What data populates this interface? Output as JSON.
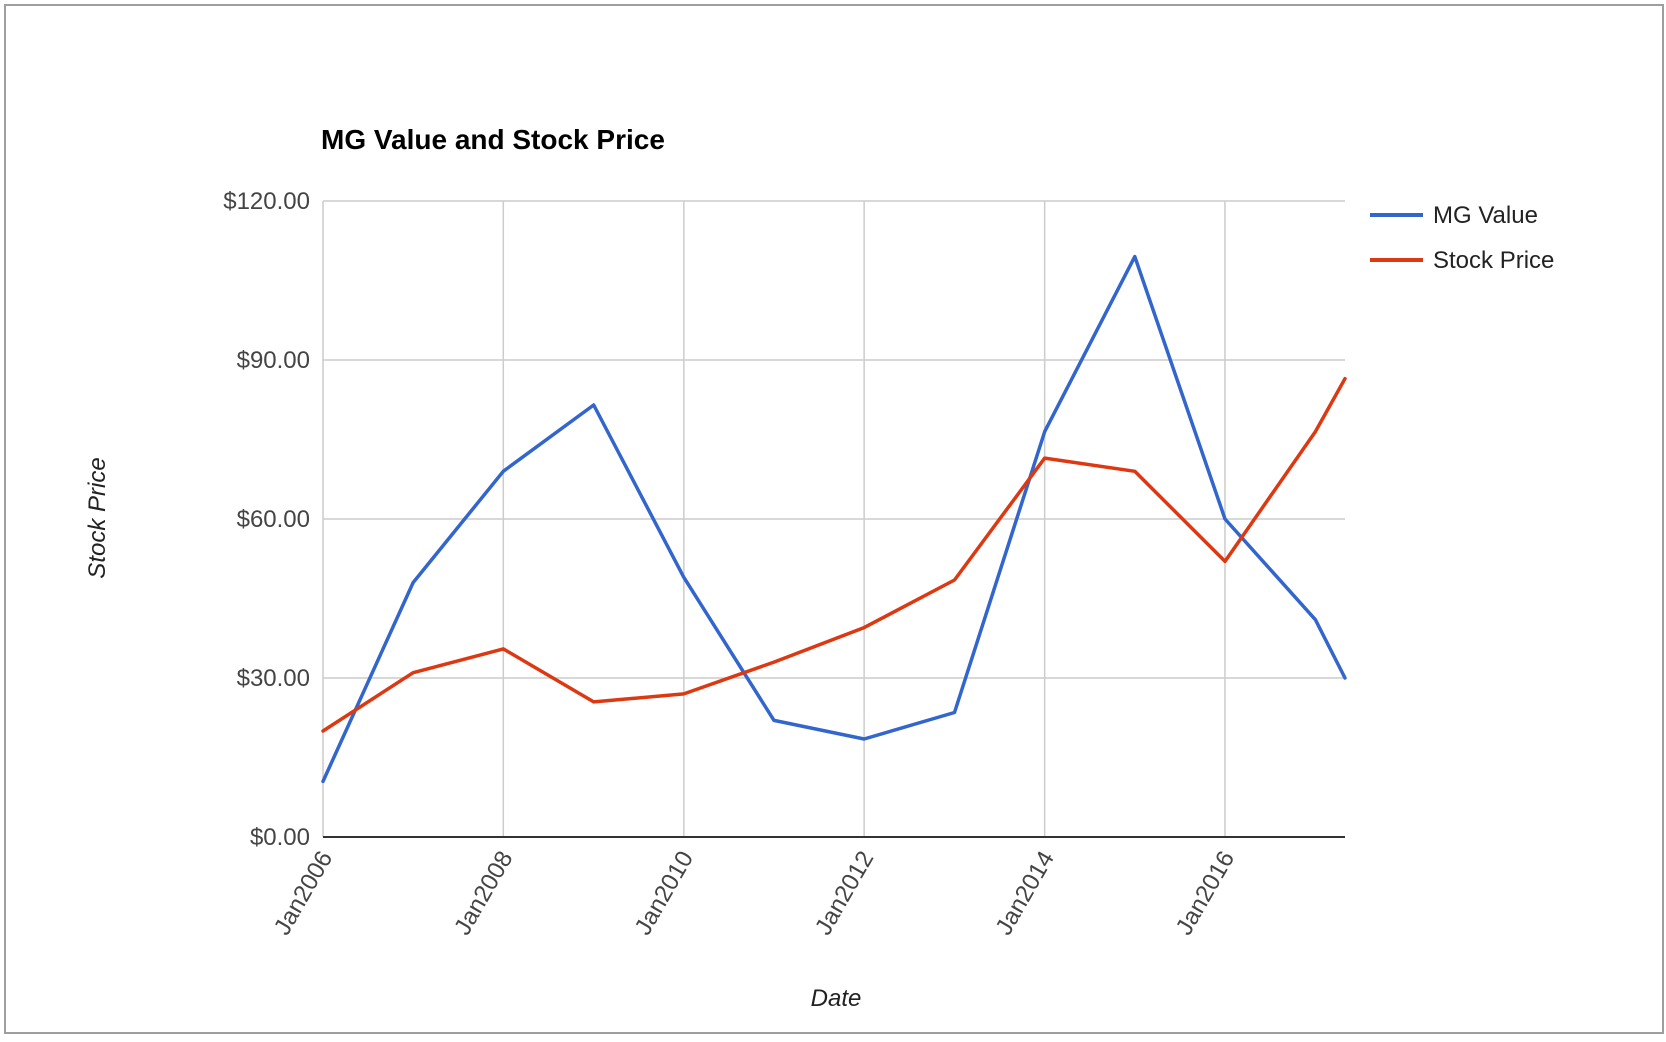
{
  "chart_data": {
    "type": "line",
    "title": "MG Value and Stock Price",
    "xlabel": "Date",
    "ylabel": "Stock Price",
    "x": [
      "2006-01-01",
      "2007-01-01",
      "2008-01-01",
      "2009-01-01",
      "2010-01-01",
      "2011-01-01",
      "2012-01-01",
      "2013-01-01",
      "2014-01-01",
      "2015-01-01",
      "2016-01-01",
      "2017-01-01",
      "2017-05-01"
    ],
    "x_ticks": [
      "Jan2006",
      "Jan2008",
      "Jan2010",
      "Jan2012",
      "Jan2014",
      "Jan2016"
    ],
    "x_tick_dates": [
      "2006-01-01",
      "2008-01-01",
      "2010-01-01",
      "2012-01-01",
      "2014-01-01",
      "2016-01-01"
    ],
    "xlim": [
      "2006-01-01",
      "2017-05-01"
    ],
    "y_ticks": [
      "$0.00",
      "$30.00",
      "$60.00",
      "$90.00",
      "$120.00"
    ],
    "y_tick_values": [
      0,
      30,
      60,
      90,
      120
    ],
    "ylim": [
      0,
      120
    ],
    "grid": true,
    "legend_position": "right",
    "series": [
      {
        "name": "MG Value",
        "color": "#3366cc",
        "values": [
          10.5,
          48,
          69,
          81.5,
          49,
          22,
          18.5,
          23.5,
          76.5,
          109.5,
          60,
          41,
          30
        ]
      },
      {
        "name": "Stock Price",
        "color": "#dc3912",
        "values": [
          20,
          31,
          35.5,
          25.5,
          27,
          33,
          39.5,
          48.5,
          71.5,
          69,
          52,
          76.5,
          86.5
        ]
      }
    ]
  }
}
